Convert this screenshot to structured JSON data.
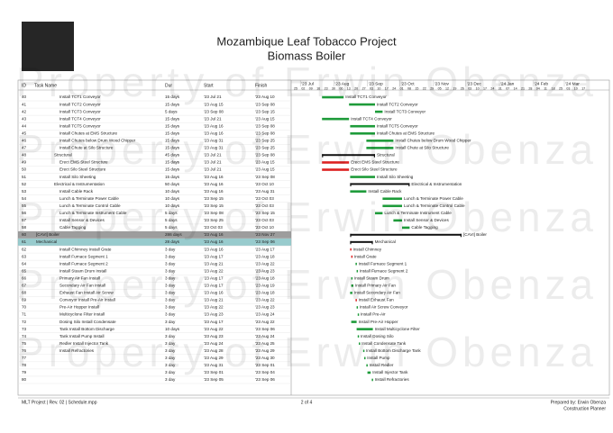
{
  "header": {
    "title": "Mozambique Leaf Tobacco Project",
    "subtitle": "Biomass Boiler",
    "watermark": "Property of Erwin Obenza"
  },
  "table": {
    "columns": [
      "ID",
      "Task Name",
      "Dur",
      "Start",
      "Finish"
    ],
    "rows": [
      {
        "id": 40,
        "name": "Install TCT1 Conveyor",
        "dur": "15 days",
        "start": "'23 Jul 21",
        "finish": "'23 Aug 10",
        "style": "task"
      },
      {
        "id": 41,
        "name": "Install TCT2 Conveyor",
        "dur": "15 days",
        "start": "'23 Aug 15",
        "finish": "'23 Sep 08",
        "style": "task"
      },
      {
        "id": 42,
        "name": "Install TCT3 Conveyor",
        "dur": "5 days",
        "start": "'23 Sep 08",
        "finish": "'23 Sep 15",
        "style": "task"
      },
      {
        "id": 43,
        "name": "Install TCT4 Conveyor",
        "dur": "15 days",
        "start": "'23 Jul 21",
        "finish": "'23 Aug 15",
        "style": "task"
      },
      {
        "id": 44,
        "name": "Install TCT5 Conveyor",
        "dur": "15 days",
        "start": "'23 Aug 16",
        "finish": "'23 Sep 08",
        "style": "task"
      },
      {
        "id": 45,
        "name": "Install Chutes at EMS Structure",
        "dur": "15 days",
        "start": "'23 Aug 16",
        "finish": "'23 Sep 08",
        "style": "task"
      },
      {
        "id": 46,
        "name": "Install Chutes below Drum Wood Chipper",
        "dur": "15 days",
        "start": "'23 Aug 31",
        "finish": "'23 Sep 25",
        "style": "task"
      },
      {
        "id": 47,
        "name": "Install Chute at Silo Structure",
        "dur": "15 days",
        "start": "'23 Aug 31",
        "finish": "'23 Sep 25",
        "style": "task"
      },
      {
        "id": 48,
        "name": "Structural",
        "dur": "45 days",
        "start": "'23 Jul 21",
        "finish": "'23 Sep 08",
        "style": "summary"
      },
      {
        "id": 49,
        "name": "Erect EMS Steel Structure",
        "dur": "15 days",
        "start": "'23 Jul 21",
        "finish": "'23 Aug 15",
        "style": "critical"
      },
      {
        "id": 50,
        "name": "Erect Silo Steel Structure",
        "dur": "15 days",
        "start": "'23 Jul 21",
        "finish": "'23 Aug 15",
        "style": "critical"
      },
      {
        "id": 51,
        "name": "Install Silo Sheeting",
        "dur": "15 days",
        "start": "'23 Aug 16",
        "finish": "'23 Sep 08",
        "style": "task"
      },
      {
        "id": 52,
        "name": "Electrical & Instrumentation",
        "dur": "50 days",
        "start": "'23 Aug 16",
        "finish": "'23 Oct 10",
        "style": "summary"
      },
      {
        "id": 53,
        "name": "Install Cable Rack",
        "dur": "10 days",
        "start": "'23 Aug 16",
        "finish": "'23 Aug 31",
        "style": "task"
      },
      {
        "id": 54,
        "name": "Lunch & Terminate Power Cable",
        "dur": "10 days",
        "start": "'23 Sep 15",
        "finish": "'23 Oct 03",
        "style": "task"
      },
      {
        "id": 55,
        "name": "Lunch & Terminate Control Cable",
        "dur": "10 days",
        "start": "'23 Sep 15",
        "finish": "'23 Oct 03",
        "style": "task"
      },
      {
        "id": 56,
        "name": "Lunch & Terminate Instrument Cable",
        "dur": "5 days",
        "start": "'23 Sep 08",
        "finish": "'23 Sep 15",
        "style": "task"
      },
      {
        "id": 57,
        "name": "Install Sensor & Devices",
        "dur": "5 days",
        "start": "'23 Sep 25",
        "finish": "'23 Oct 03",
        "style": "task"
      },
      {
        "id": 58,
        "name": "Cable Tagging",
        "dur": "5 days",
        "start": "'23 Oct 03",
        "finish": "'23 Oct 10",
        "style": "task"
      },
      {
        "id": 60,
        "name": "[CAVI] Boiler",
        "dur": "286 days",
        "start": "'23 Aug 16",
        "finish": "'23 Nov 27",
        "style": "summary",
        "fill": "#8c8c8c"
      },
      {
        "id": 61,
        "name": "Mechanical",
        "dur": "28 days",
        "start": "'23 Aug 16",
        "finish": "'23 Sep 06",
        "style": "summary",
        "fill": "#86c2c4"
      },
      {
        "id": 62,
        "name": "Install Chimney Install Grate",
        "dur": "3 day",
        "start": "'23 Aug 16",
        "finish": "'23 Aug 17",
        "style": "critical",
        "bar_label": "Install Chimney"
      },
      {
        "id": 63,
        "name": "Install Furnace Segment 1",
        "dur": "3 day",
        "start": "'23 Aug 17",
        "finish": "'23 Aug 18",
        "style": "critical",
        "bar_label": "Install Grate"
      },
      {
        "id": 64,
        "name": "Install Furnace Segment 2",
        "dur": "3 day",
        "start": "'23 Aug 21",
        "finish": "'23 Aug 22",
        "style": "task",
        "bar_label": "Install Furnace Segment 1"
      },
      {
        "id": 65,
        "name": "Install Steam Drum Install",
        "dur": "3 day",
        "start": "'23 Aug 22",
        "finish": "'23 Aug 23",
        "style": "task",
        "bar_label": "Install Furnace Segment 2"
      },
      {
        "id": 66,
        "name": "Primary Air Fan Install",
        "dur": "3 day",
        "start": "'23 Aug 17",
        "finish": "'23 Aug 18",
        "style": "task",
        "bar_label": "Install Steam Drum"
      },
      {
        "id": 67,
        "name": "Secondary Air Fan Install",
        "dur": "3 day",
        "start": "'23 Aug 17",
        "finish": "'23 Aug 19",
        "style": "task",
        "bar_label": "Install Primary Air Fan"
      },
      {
        "id": 68,
        "name": "Exhaust Fan Install Air Screw",
        "dur": "3 day",
        "start": "'23 Aug 16",
        "finish": "'23 Aug 18",
        "style": "task",
        "bar_label": "Install Secondary Air Fan"
      },
      {
        "id": 69,
        "name": "Conveyor Install Pre-Air Install",
        "dur": "3 day",
        "start": "'23 Aug 21",
        "finish": "'23 Aug 22",
        "style": "critical",
        "bar_label": "Install Exhaust Fan"
      },
      {
        "id": 70,
        "name": "Pre-Air Hopper Install",
        "dur": "3 day",
        "start": "'23 Aug 22",
        "finish": "'23 Aug 23",
        "style": "task",
        "bar_label": "Install Air Screw Conveyor"
      },
      {
        "id": 71,
        "name": "Multicyclone Filter Install",
        "dur": "3 day",
        "start": "'23 Aug 23",
        "finish": "'23 Aug 24",
        "style": "task",
        "bar_label": "Install Pre-Air"
      },
      {
        "id": 72,
        "name": "Dosing Silo Install Condensate",
        "dur": "3 day",
        "start": "'23 Aug 17",
        "finish": "'23 Aug 22",
        "style": "task",
        "bar_label": "Install Pre-Air Hopper"
      },
      {
        "id": 73,
        "name": "Tank Install Bottom Discharge",
        "dur": "10 days",
        "start": "'23 Aug 22",
        "finish": "'23 Sep 06",
        "style": "task",
        "bar_label": "Install Multicyclone Filter"
      },
      {
        "id": 74,
        "name": "Tank Install Pump Install",
        "dur": "3 day",
        "start": "'23 Aug 23",
        "finish": "'23 Aug 24",
        "style": "task",
        "bar_label": "Install Dosing Silo"
      },
      {
        "id": 75,
        "name": "Redler Install Injector Tank",
        "dur": "3 day",
        "start": "'23 Aug 24",
        "finish": "'23 Aug 25",
        "style": "task",
        "bar_label": "Install Condensate Tank"
      },
      {
        "id": 76,
        "name": "Install Refractories",
        "dur": "3 day",
        "start": "'23 Aug 28",
        "finish": "'23 Aug 29",
        "style": "task",
        "bar_label": "Install Bottom Discharge Tank"
      },
      {
        "id": 77,
        "name": null,
        "dur": "3 day",
        "start": "'23 Aug 29",
        "finish": "'23 Aug 30",
        "style": "task",
        "bar_label": "Install Pump"
      },
      {
        "id": 78,
        "name": null,
        "dur": "3 day",
        "start": "'23 Aug 31",
        "finish": "'23 Sep 01",
        "style": "task",
        "bar_label": "Install Redler"
      },
      {
        "id": 79,
        "name": null,
        "dur": "3 day",
        "start": "'23 Sep 01",
        "finish": "'23 Sep 04",
        "style": "task",
        "bar_label": "Install Injector Tank"
      },
      {
        "id": 80,
        "name": null,
        "dur": "3 day",
        "start": "'23 Sep 05",
        "finish": "'23 Sep 06",
        "style": "task",
        "bar_label": "Install Refractories"
      }
    ]
  },
  "timeline": {
    "months": [
      "'23 Jul",
      "'23 Aug",
      "'23 Sep",
      "'23 Oct",
      "'23 Nov",
      "'23 Dec",
      "'24 Jan",
      "'24 Feb",
      "'24 Mar"
    ],
    "weeks": [
      "25",
      "02",
      "09",
      "16",
      "23",
      "30",
      "06",
      "13",
      "20",
      "27",
      "03",
      "10",
      "17",
      "24",
      "01",
      "08",
      "15",
      "22",
      "29",
      "05",
      "12",
      "19",
      "26",
      "03",
      "10",
      "17",
      "24",
      "31",
      "07",
      "14",
      "21",
      "28",
      "04",
      "11",
      "18",
      "25",
      "03",
      "10",
      "17"
    ]
  },
  "footer": {
    "left": "MLT Project | Rev. 02 | Schedule.mpp",
    "center": "2 of 4",
    "right1": "Prepared by: Erwin Obenza",
    "right2": "Construction Planner"
  }
}
